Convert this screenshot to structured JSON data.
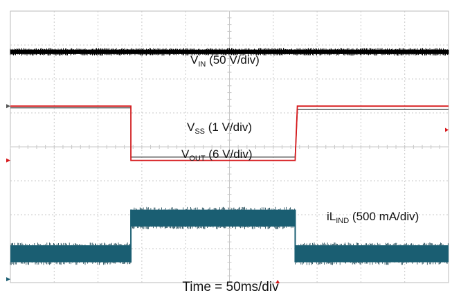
{
  "chart_data": {
    "type": "line",
    "title": "",
    "xlabel": "Time = 50ms/div",
    "ylabel": "",
    "grid": true,
    "divisions": {
      "x": 10,
      "y": 8
    },
    "x_range_div": [
      0,
      10
    ],
    "x_units": "div",
    "transition_div": {
      "off": 2.75,
      "on": 6.5
    },
    "series": [
      {
        "name": "V_IN",
        "label_main": "V",
        "label_sub": "IN",
        "label_tail": " (50 V/div)",
        "color": "#000000",
        "style": "noisy-thick",
        "x": [
          0,
          10
        ],
        "y": [
          6.8,
          6.8
        ]
      },
      {
        "name": "V_OUT",
        "label_main": "V",
        "label_sub": "OUT",
        "label_tail": " (6 V/div)",
        "color": "#d7191c",
        "style": "line",
        "marker": "1",
        "x": [
          0,
          2.75,
          2.75,
          3.2,
          6.5,
          6.55,
          10
        ],
        "y": [
          5.2,
          5.2,
          3.6,
          3.6,
          3.6,
          5.2,
          5.2
        ]
      },
      {
        "name": "V_SS",
        "label_main": "V",
        "label_sub": "SS",
        "label_tail": " (1 V/div)",
        "color": "#5a5a5a",
        "style": "line",
        "x": [
          0,
          2.75,
          2.75,
          6.5,
          6.55,
          10
        ],
        "y": [
          5.15,
          5.15,
          3.7,
          3.7,
          5.1,
          5.1
        ]
      },
      {
        "name": "iL_IND",
        "label_main": "iL",
        "label_sub": "IND",
        "label_tail": " (500 mA/div)",
        "color": "#1a5e72",
        "style": "ripple-band",
        "x": [
          0,
          2.75,
          2.75,
          6.5,
          6.5,
          10
        ],
        "y_center": [
          0.85,
          0.85,
          1.9,
          1.9,
          0.85,
          0.85
        ],
        "ripple_div": 0.5
      }
    ]
  }
}
